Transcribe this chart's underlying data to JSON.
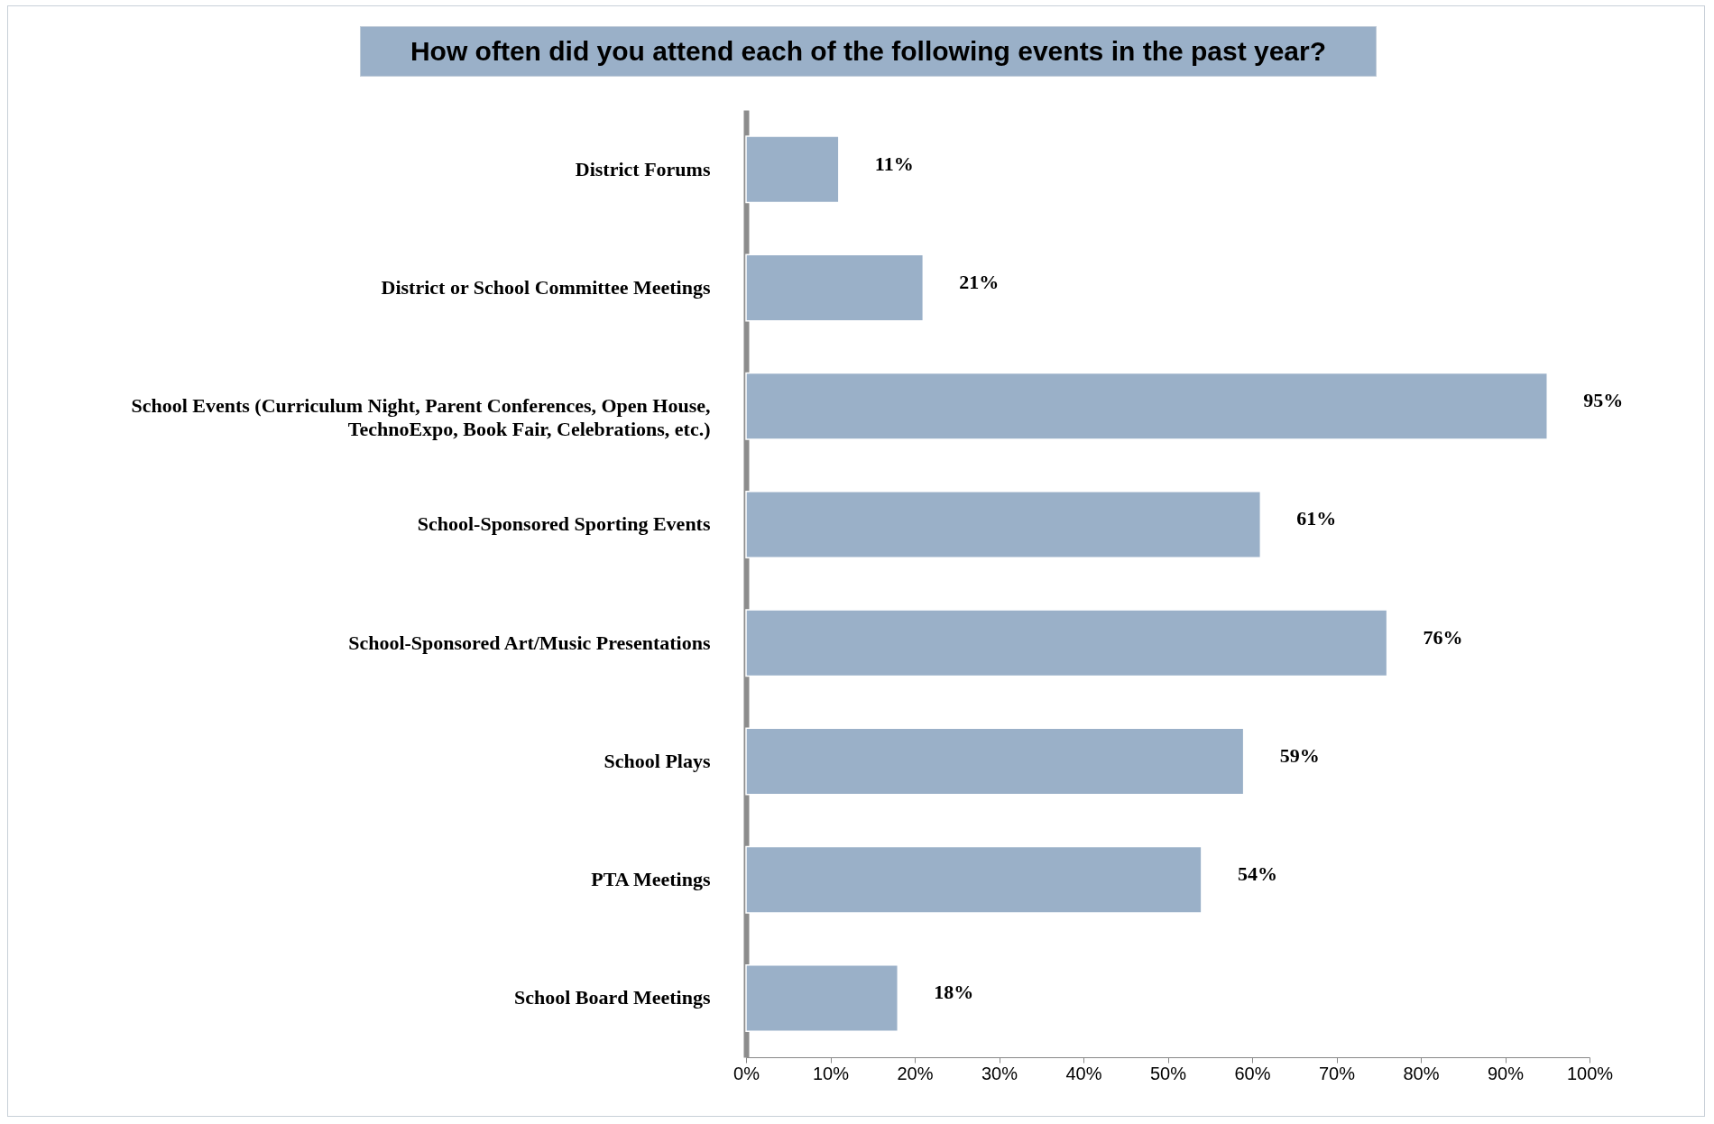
{
  "chart_data": {
    "type": "bar",
    "orientation": "horizontal",
    "title": "How often did you attend each of the following events in the past year?",
    "categories": [
      "District Forums",
      "District or School Committee Meetings",
      "School Events (Curriculum Night, Parent Conferences, Open House,\nTechnoExpo, Book Fair, Celebrations, etc.)",
      "School-Sponsored Sporting Events",
      "School-Sponsored Art/Music Presentations",
      "School Plays",
      "PTA Meetings",
      "School Board Meetings"
    ],
    "values": [
      11,
      21,
      95,
      61,
      76,
      59,
      54,
      18
    ],
    "value_labels": [
      "11%",
      "21%",
      "95%",
      "61%",
      "76%",
      "59%",
      "54%",
      "18%"
    ],
    "color": "#9ab0c8",
    "xlim": [
      0,
      100
    ],
    "xticks": [
      {
        "value": 0,
        "label": "0%"
      },
      {
        "value": 10,
        "label": "10%"
      },
      {
        "value": 20,
        "label": "20%"
      },
      {
        "value": 30,
        "label": "30%"
      },
      {
        "value": 40,
        "label": "40%"
      },
      {
        "value": 50,
        "label": "50%"
      },
      {
        "value": 60,
        "label": "60%"
      },
      {
        "value": 70,
        "label": "70%"
      },
      {
        "value": 80,
        "label": "80%"
      },
      {
        "value": 90,
        "label": "90%"
      },
      {
        "value": 100,
        "label": "100%"
      }
    ],
    "grid": false
  }
}
